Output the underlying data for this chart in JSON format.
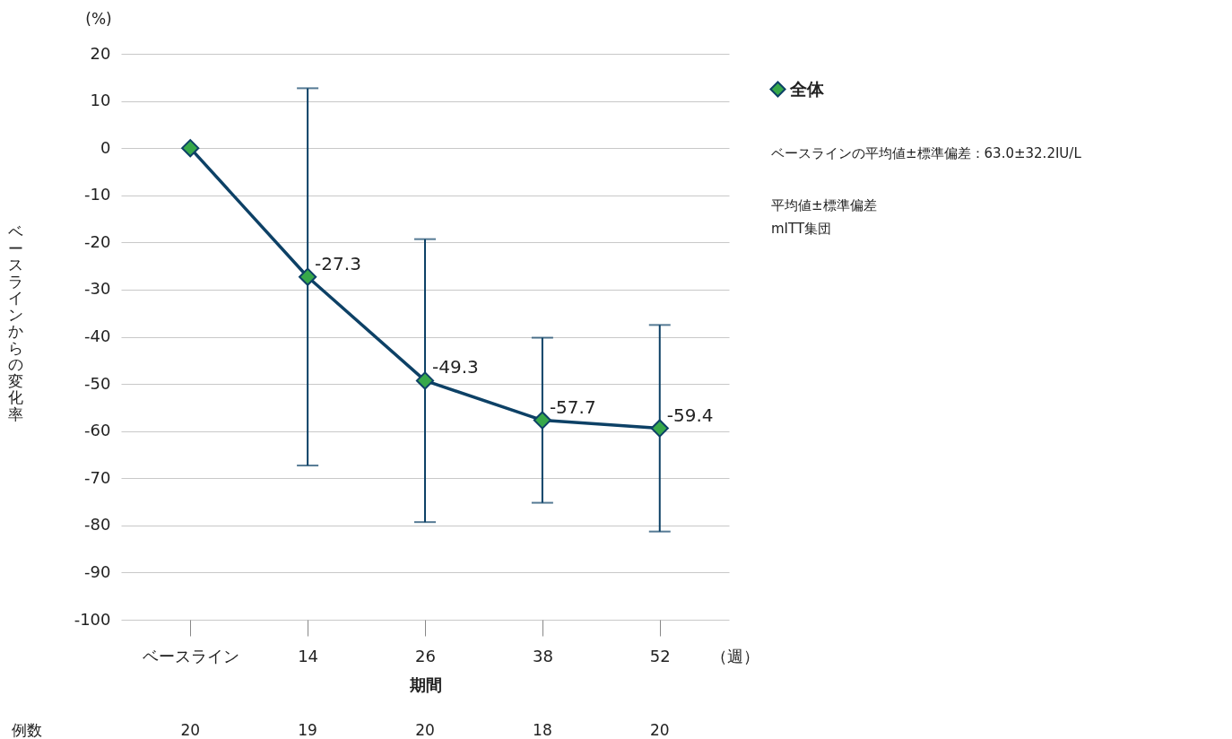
{
  "chart_data": {
    "type": "line",
    "xlabel": "期間",
    "ylabel": "ベースラインからの変化率",
    "categories": [
      "ベースライン",
      "14",
      "26",
      "38",
      "52"
    ],
    "series": [
      {
        "name": "全体",
        "color": "#0d4166",
        "values": [
          0,
          -27.3,
          -49.3,
          -57.7,
          -59.4
        ],
        "errors": [
          null,
          40.0,
          30.0,
          17.5,
          21.9
        ],
        "value_labels": [
          null,
          "-27.3",
          "-49.3",
          "-57.7",
          "-59.4"
        ]
      }
    ],
    "ylim": [
      -100,
      20
    ],
    "yticks": [
      -100,
      -90,
      -80,
      -70,
      -60,
      -50,
      -40,
      -30,
      -20,
      -10,
      0,
      10,
      20
    ],
    "grid": "y",
    "legend": "top right",
    "marker": "diamond",
    "line_style": "solid",
    "annotations": [
      "(%)",
      "（週）",
      "例数",
      "ベースラインの平均値±標準偏差：63.0±32.2IU/L",
      "平均値±標準偏差",
      "mITT集団",
      "20",
      "19",
      "20",
      "18",
      "20"
    ]
  }
}
